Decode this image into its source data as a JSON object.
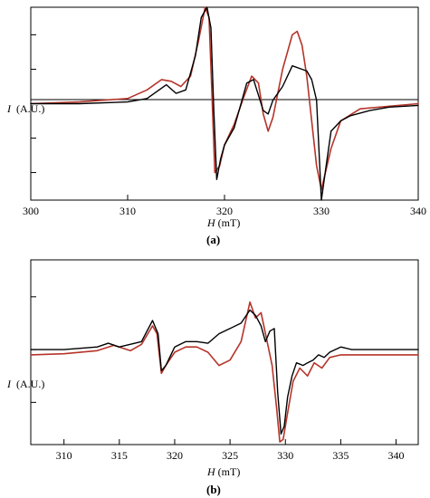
{
  "chart_data": [
    {
      "type": "line",
      "caption": "(a)",
      "xlabel_symbol": "H",
      "xlabel_unit": "(mT)",
      "ylabel_symbol": "I",
      "ylabel_unit": "(A.U.)",
      "xlim": [
        300,
        340
      ],
      "ylim": [
        -2.8,
        2.8
      ],
      "xticks": [
        300,
        310,
        320,
        330,
        340
      ],
      "y_tick_positions": [
        -2,
        -1,
        0,
        1,
        2
      ],
      "colors": {
        "experimental": "#000000",
        "simulated": "#b5342a"
      },
      "series": [
        {
          "role": "experimental",
          "x": [
            300,
            305,
            310,
            312,
            314,
            315,
            316,
            317,
            317.6,
            318.2,
            318.6,
            318.9,
            319.2,
            319.6,
            320,
            321,
            321.8,
            322.3,
            323,
            324,
            324.5,
            325,
            326,
            327,
            328,
            328.5,
            329,
            329.5,
            330,
            330.5,
            331,
            332,
            333,
            335,
            337,
            340
          ],
          "y": [
            0,
            0,
            0.05,
            0.15,
            0.55,
            0.3,
            0.4,
            1.4,
            2.5,
            2.8,
            2.2,
            -0.2,
            -2.2,
            -1.6,
            -1.2,
            -0.7,
            0.1,
            0.6,
            0.7,
            -0.2,
            -0.3,
            0.1,
            0.5,
            1.1,
            1.0,
            0.95,
            0.7,
            0.1,
            -2.8,
            -1.8,
            -0.8,
            -0.5,
            -0.35,
            -0.2,
            -0.1,
            -0.05
          ]
        },
        {
          "role": "simulated",
          "x": [
            300,
            305,
            310,
            312,
            313.5,
            314.5,
            315.5,
            316.5,
            317.3,
            318,
            318.4,
            318.7,
            319,
            319.5,
            320,
            321,
            322,
            322.8,
            323.5,
            324,
            324.5,
            325,
            326,
            327,
            327.5,
            328,
            328.5,
            329,
            329.5,
            330,
            331,
            332,
            334,
            340
          ],
          "y": [
            0,
            0.05,
            0.15,
            0.4,
            0.7,
            0.65,
            0.5,
            0.8,
            1.8,
            2.8,
            2.5,
            0.3,
            -2.0,
            -1.8,
            -1.2,
            -0.6,
            0.2,
            0.8,
            0.6,
            -0.3,
            -0.8,
            -0.4,
            1.0,
            2.0,
            2.1,
            1.7,
            0.8,
            -0.5,
            -1.8,
            -2.5,
            -1.3,
            -0.5,
            -0.15,
            0
          ]
        }
      ]
    },
    {
      "type": "line",
      "caption": "(b)",
      "xlabel_symbol": "H",
      "xlabel_unit": "(mT)",
      "ylabel_symbol": "I",
      "ylabel_unit": "(A.U.)",
      "xlim": [
        307,
        342
      ],
      "ylim": [
        -1.8,
        1.7
      ],
      "xticks": [
        310,
        315,
        320,
        325,
        330,
        335,
        340
      ],
      "y_tick_positions": [
        -1,
        0,
        1
      ],
      "colors": {
        "experimental": "#000000",
        "simulated": "#b5342a"
      },
      "series": [
        {
          "role": "experimental",
          "x": [
            307,
            310,
            313,
            314,
            315,
            317,
            318,
            318.5,
            318.8,
            319.2,
            320,
            321,
            322,
            323,
            324,
            325,
            326,
            326.8,
            327.3,
            327.8,
            328.2,
            328.6,
            329,
            329.3,
            329.6,
            329.9,
            330.2,
            330.6,
            331,
            331.6,
            332,
            332.5,
            333,
            333.5,
            334,
            335,
            336,
            338,
            342
          ],
          "y": [
            0,
            0,
            0.05,
            0.12,
            0.05,
            0.15,
            0.55,
            0.3,
            -0.4,
            -0.3,
            0.05,
            0.15,
            0.15,
            0.12,
            0.3,
            0.4,
            0.5,
            0.75,
            0.65,
            0.45,
            0.15,
            0.35,
            0.4,
            -0.8,
            -1.6,
            -1.45,
            -0.9,
            -0.5,
            -0.25,
            -0.3,
            -0.25,
            -0.2,
            -0.1,
            -0.15,
            -0.05,
            0.05,
            0,
            0,
            0
          ]
        },
        {
          "role": "simulated",
          "x": [
            307,
            310,
            313,
            314.5,
            316,
            317,
            318,
            318.4,
            318.8,
            319.2,
            320,
            321,
            322,
            323,
            324,
            325,
            326,
            326.8,
            327.3,
            327.8,
            328.3,
            328.8,
            329.2,
            329.5,
            329.8,
            330.2,
            330.7,
            331.3,
            332,
            332.6,
            333.3,
            334,
            335,
            337,
            342
          ],
          "y": [
            -0.1,
            -0.08,
            -0.02,
            0.08,
            -0.02,
            0.1,
            0.45,
            0.3,
            -0.45,
            -0.3,
            -0.05,
            0.05,
            0.05,
            -0.05,
            -0.3,
            -0.2,
            0.15,
            0.9,
            0.6,
            0.7,
            0.2,
            -0.3,
            -1.1,
            -1.75,
            -1.7,
            -1.2,
            -0.6,
            -0.35,
            -0.5,
            -0.25,
            -0.35,
            -0.15,
            -0.1,
            -0.1,
            -0.1
          ]
        }
      ]
    }
  ]
}
